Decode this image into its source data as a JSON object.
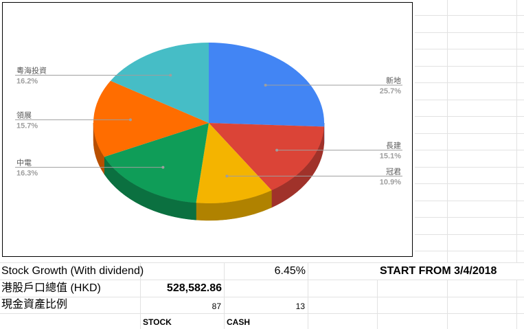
{
  "sheet": {
    "growth_label": "Stock Growth (With dividend)",
    "growth_value": "6.45%",
    "start_label": "START FROM 3/4/2018",
    "total_label": "港股戶口總值 (HKD)",
    "total_value": "528,582.86",
    "ratio_label": "現金資產比例",
    "ratio_stock": "87",
    "ratio_cash": "13",
    "stock_header": "STOCK",
    "cash_header": "CASH"
  },
  "chart_data": {
    "type": "pie",
    "title": "",
    "slices": [
      {
        "name": "新地",
        "pct_label": "25.7%",
        "value": 25.7,
        "color": "#4285f4",
        "side": "#2f62b3"
      },
      {
        "name": "長建",
        "pct_label": "15.1%",
        "value": 15.1,
        "color": "#db4437",
        "side": "#a0322a"
      },
      {
        "name": "冠君",
        "pct_label": "10.9%",
        "value": 10.9,
        "color": "#f4b400",
        "side": "#b08200"
      },
      {
        "name": "中電",
        "pct_label": "16.3%",
        "value": 16.3,
        "color": "#0f9d58",
        "side": "#0b7040"
      },
      {
        "name": "領展",
        "pct_label": "15.7%",
        "value": 15.7,
        "color": "#ff6d00",
        "side": "#b84f00"
      },
      {
        "name": "粵海投資",
        "pct_label": "16.2%",
        "value": 16.2,
        "color": "#46bdc6",
        "side": "#32888f"
      }
    ],
    "legend": "labels-with-leader-lines",
    "style": "3d"
  }
}
